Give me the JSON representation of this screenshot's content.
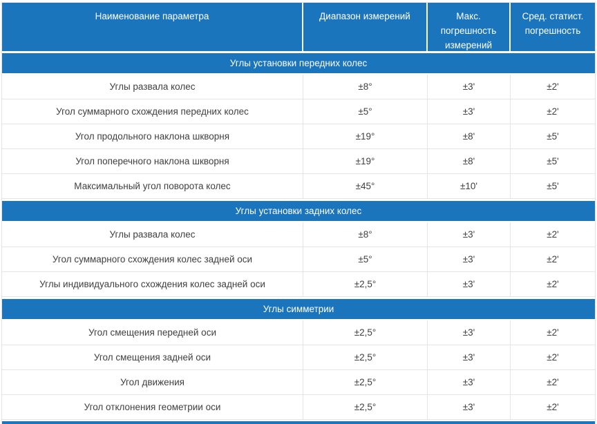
{
  "table": {
    "accent_color": "#1b75bc",
    "border_color": "#e4e4e4",
    "text_color": "#3f3f3f",
    "columns": [
      "Наименование параметра",
      "Диапазон измерений",
      "Макс. погрешность измерений",
      "Сред. статист. погрешность"
    ],
    "sections": [
      {
        "title": "Углы установки передних колес",
        "rows": [
          [
            "Углы развала колес",
            "±8°",
            "±3'",
            "±2'"
          ],
          [
            "Угол суммарного схождения передних колес",
            "±5°",
            "±3'",
            "±2'"
          ],
          [
            "Угол продольного наклона шкворня",
            "±19°",
            "±8'",
            "±5'"
          ],
          [
            "Угол поперечного наклона шкворня",
            "±19°",
            "±8'",
            "±5'"
          ],
          [
            "Максимальный угол поворота колес",
            "±45°",
            "±10'",
            "±5'"
          ]
        ]
      },
      {
        "title": "Углы установки задних колес",
        "rows": [
          [
            "Углы развала колес",
            "±8°",
            "±3'",
            "±2'"
          ],
          [
            "Угол суммарного схождения колес задней оси",
            "±5°",
            "±3'",
            "±2'"
          ],
          [
            "Углы индивидуального схождения колес задней оси",
            "±2,5°",
            "±3'",
            "±2'"
          ]
        ]
      },
      {
        "title": "Углы симметрии",
        "rows": [
          [
            "Угол смещения передней оси",
            "±2,5°",
            "±3'",
            "±2'"
          ],
          [
            "Угол смещения задней оси",
            "±2,5°",
            "±3'",
            "±2'"
          ],
          [
            "Угол движения",
            "±2,5°",
            "±3'",
            "±2'"
          ],
          [
            "Угол отклонения геометрии оси",
            "±2,5°",
            "±3'",
            "±2'"
          ]
        ]
      }
    ]
  }
}
